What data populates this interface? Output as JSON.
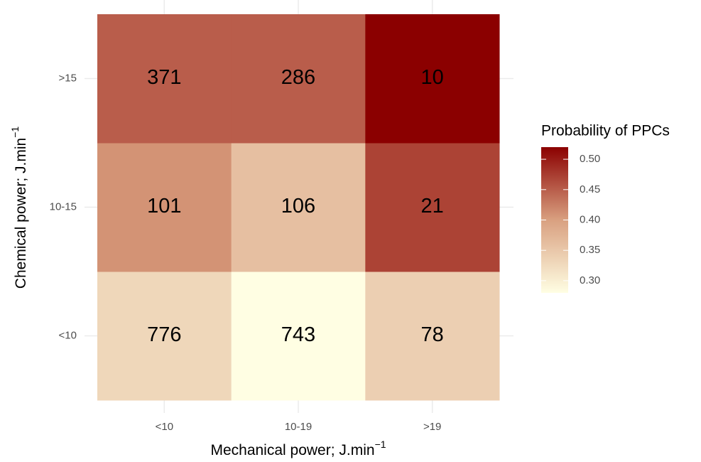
{
  "chart_data": {
    "type": "heatmap",
    "x_label": "Mechanical power; J.min",
    "x_label_sup": "−1",
    "y_label": "Chemical power; J.min",
    "y_label_sup": "−1",
    "x_categories": [
      "<10",
      "10-19",
      ">19"
    ],
    "y_categories": [
      "<10",
      "10-15",
      ">15"
    ],
    "values": [
      [
        0.33,
        0.28,
        0.34
      ],
      [
        0.41,
        0.36,
        0.47
      ],
      [
        0.45,
        0.45,
        0.52
      ]
    ],
    "counts": [
      [
        776,
        743,
        78
      ],
      [
        101,
        106,
        21
      ],
      [
        371,
        286,
        10
      ]
    ],
    "legend_title": "Probability of PPCs",
    "colors": [
      "#FFFEE3",
      "#D9A080",
      "#8B0000"
    ],
    "clim": [
      0.28,
      0.52
    ],
    "cticks": [
      {
        "value": 0.3,
        "label": "0.30"
      },
      {
        "value": 0.35,
        "label": "0.35"
      },
      {
        "value": 0.4,
        "label": "0.40"
      },
      {
        "value": 0.45,
        "label": "0.45"
      },
      {
        "value": 0.5,
        "label": "0.50"
      }
    ],
    "grid": true
  }
}
